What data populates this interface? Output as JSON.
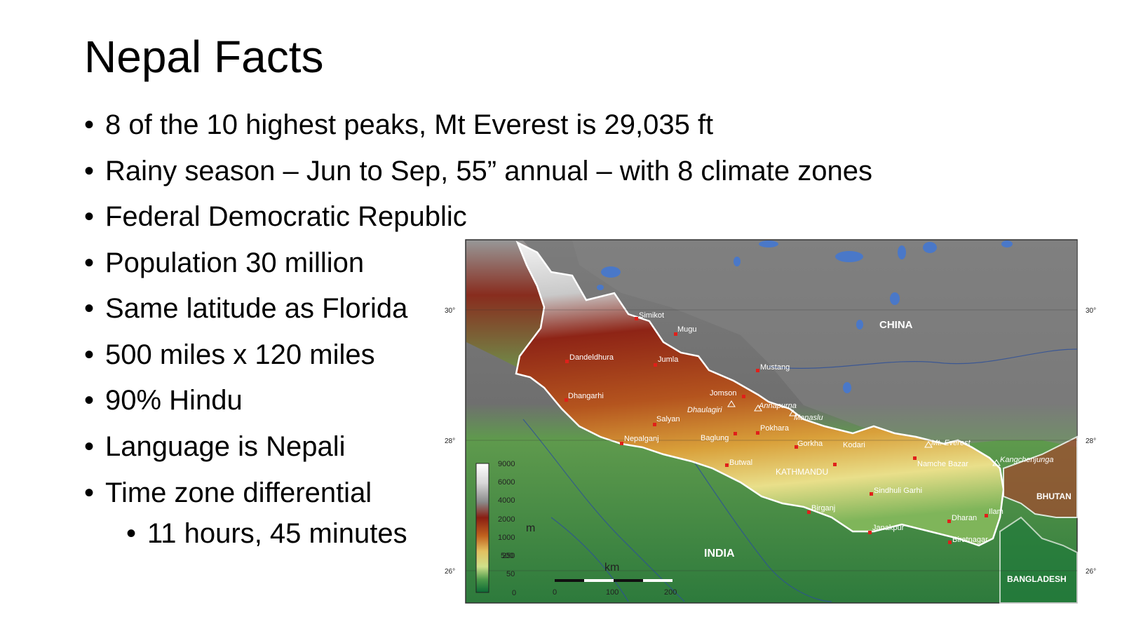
{
  "slide": {
    "title": "Nepal Facts",
    "bullets": [
      "8 of the 10 highest peaks, Mt Everest is 29,035 ft",
      "Rainy season – Jun to Sep, 55” annual – with 8 climate zones",
      "Federal Democratic Republic",
      "Population 30 million",
      "Same latitude as Florida",
      "500 miles x 120 miles",
      "90% Hindu",
      "Language is Nepali",
      "Time zone differential"
    ],
    "sub_bullet": "11 hours, 45 minutes",
    "bullet_char": "•"
  },
  "map": {
    "countries": {
      "china": "CHINA",
      "india": "INDIA",
      "bhutan": "BHUTAN",
      "bangladesh": "BANGLADESH",
      "kathmandu": "KATHMANDU"
    },
    "cities": [
      "Simikot",
      "Mugu",
      "Dandeldhura",
      "Jumla",
      "Mustang",
      "Dhangarhi",
      "Jomson",
      "Salyan",
      "Pokhara",
      "Nepalganj",
      "Baglung",
      "Gorkha",
      "Kodari",
      "Butwal",
      "Sindhuli Garhi",
      "Namche Bazar",
      "Birganj",
      "Janakpur",
      "Dharan",
      "Ilam",
      "Biratnagar"
    ],
    "peaks": [
      "Dhaulagiri",
      "Annapurna",
      "Manaslu",
      "Mt. Everest",
      "Kangchenjunga"
    ],
    "lat_labels": [
      "30°",
      "28°",
      "26°"
    ],
    "legend": {
      "unit": "m",
      "values": [
        "9000",
        "6000",
        "4000",
        "2000",
        "1000",
        "500",
        "250",
        "50",
        "0"
      ]
    },
    "scale": {
      "unit": "km",
      "values": [
        "0",
        "100",
        "200"
      ]
    },
    "colors": {
      "snow": "#f2f2f2",
      "high": "#8a1e12",
      "mid": "#c8841f",
      "low": "#e8e08a",
      "plain": "#5fa34a",
      "lowland": "#1f7a3a",
      "tibet": "#8a8a8a",
      "water": "#4a78c8",
      "border": "#ffffff"
    }
  }
}
